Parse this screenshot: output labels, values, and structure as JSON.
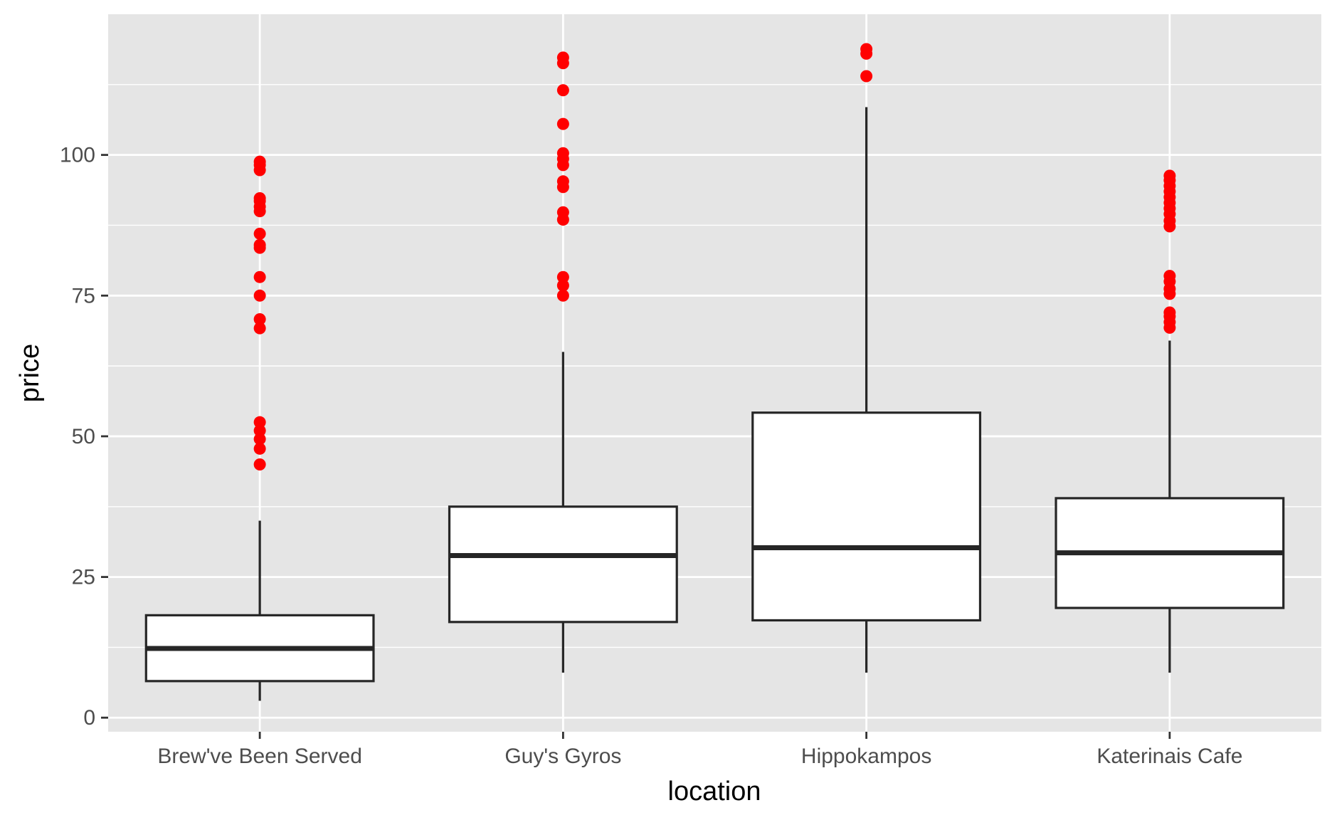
{
  "chart_data": {
    "type": "box",
    "xlabel": "location",
    "ylabel": "price",
    "ylim": [
      -2.5,
      125
    ],
    "y_ticks": [
      0,
      25,
      50,
      75,
      100
    ],
    "y_tick_labels": [
      "0",
      "25",
      "50",
      "75",
      "100"
    ],
    "grid": true,
    "legend": "none",
    "colors": {
      "panel": "#e5e5e5",
      "grid": "#ffffff",
      "box_fill": "#ffffff",
      "box_line": "#262626",
      "outlier": "#ff0000",
      "tick_text": "#4d4d4d"
    },
    "categories": [
      "Brew've Been Served",
      "Guy's Gyros",
      "Hippokampos",
      "Katerinais Cafe"
    ],
    "boxes": [
      {
        "category": "Brew've Been Served",
        "whisker_low": 3,
        "q1": 6.5,
        "median": 12.3,
        "q3": 18.2,
        "whisker_high": 35,
        "outliers": [
          45,
          47.8,
          49.5,
          51,
          52.5,
          69.2,
          70.8,
          75,
          78.3,
          83.5,
          84,
          86,
          90,
          90.8,
          91.8,
          92.3,
          97.3,
          98.2,
          98.8
        ]
      },
      {
        "category": "Guy's Gyros",
        "whisker_low": 8,
        "q1": 17,
        "median": 28.8,
        "q3": 37.5,
        "whisker_high": 65,
        "outliers": [
          75,
          76.8,
          78.3,
          88.5,
          89.8,
          94.3,
          95.3,
          98.2,
          99.3,
          100.3,
          105.5,
          111.5,
          116.3,
          117.3
        ]
      },
      {
        "category": "Hippokampos",
        "whisker_low": 8,
        "q1": 17.3,
        "median": 30.2,
        "q3": 54.2,
        "whisker_high": 108.5,
        "outliers": [
          114,
          118,
          118.8
        ]
      },
      {
        "category": "Katerinais Cafe",
        "whisker_low": 8,
        "q1": 19.5,
        "median": 29.3,
        "q3": 39,
        "whisker_high": 67,
        "outliers": [
          69.3,
          70.3,
          71.3,
          72,
          75.3,
          76.2,
          77.5,
          78.5,
          87.3,
          88.3,
          89.5,
          90.5,
          91.5,
          92.5,
          93.5,
          94.5,
          95.5,
          96.3
        ]
      }
    ]
  }
}
